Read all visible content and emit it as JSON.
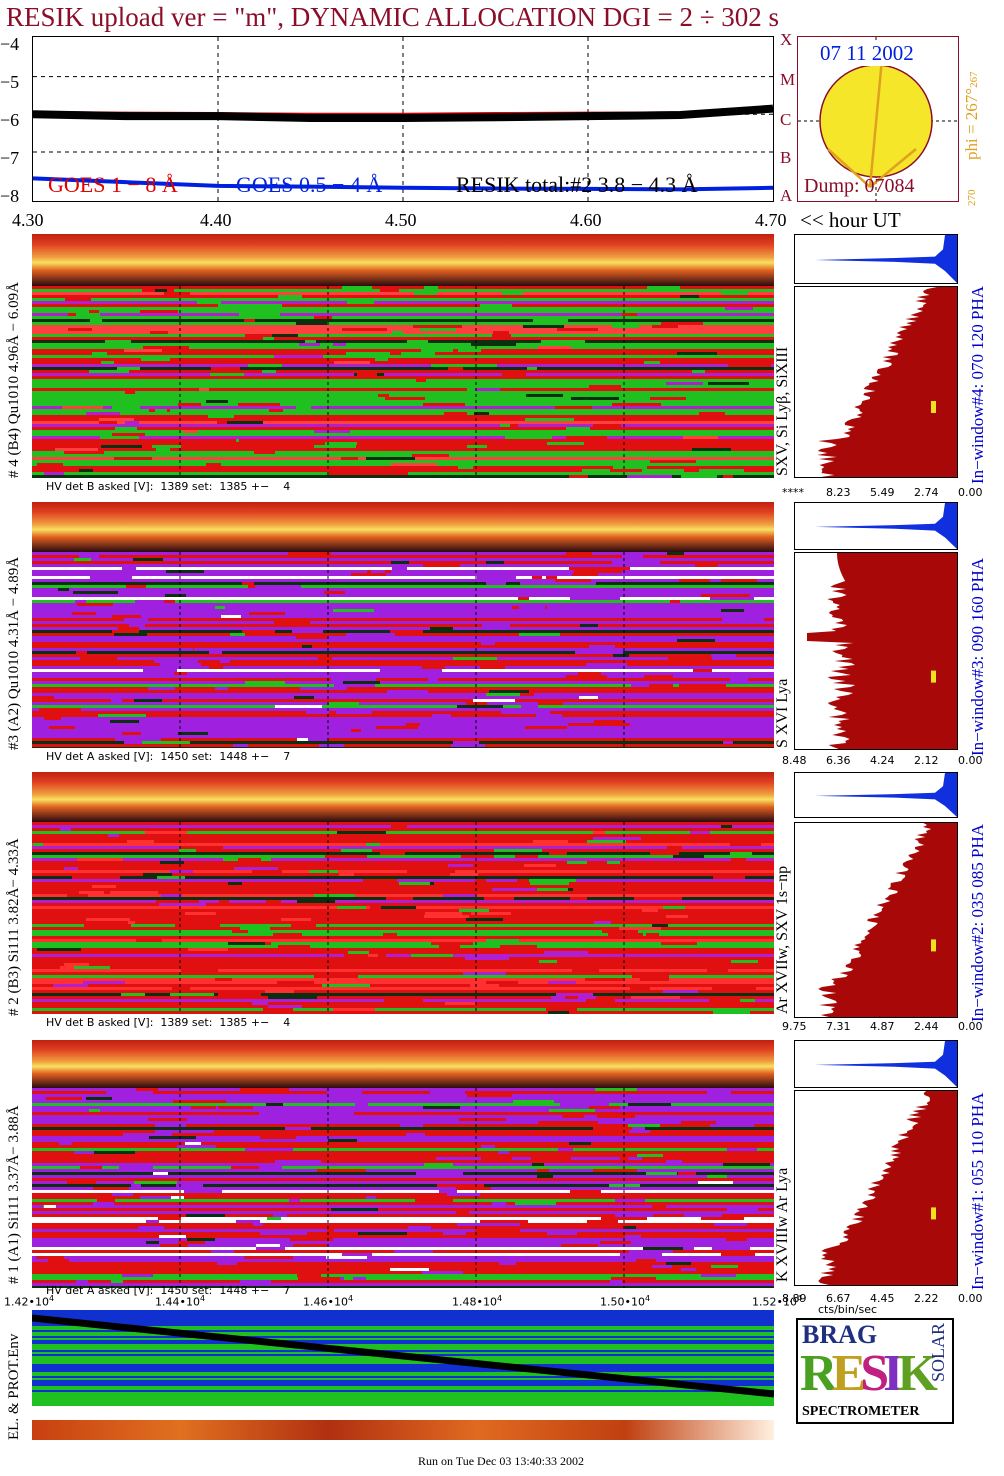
{
  "title": "RESIK upload ver = \"m\", DYNAMIC ALLOCATION  DGI =   2 ÷ 302 s",
  "lightcurve": {
    "y_ticks": [
      "−4",
      "−5",
      "−6",
      "−7",
      "−8"
    ],
    "x_ticks": [
      "4.30",
      "4.40",
      "4.50",
      "4.60",
      "4.70"
    ],
    "x_suffix": "<< hour UT",
    "legend": {
      "goes_long": "GOES 1 − 8 Å",
      "goes_short": "GOES 0.5 − 4 Å",
      "resik": "RESIK total:#2  3.8 − 4.3 Å"
    },
    "class_letters": [
      "X",
      "M",
      "C",
      "B",
      "A"
    ],
    "colors": {
      "goes_long": "#e00000",
      "goes_short": "#0020e0",
      "resik": "#000000"
    }
  },
  "sun": {
    "date": "07 11 2002",
    "dump": "Dump: 07084",
    "phi": "phi = 267°",
    "phi_small": "267",
    "angle_small": "270"
  },
  "channels": [
    {
      "left_label": "# 4 (B4) Qu1010 4.96Å − 6.09Å",
      "lines_label": "SXV, Si Lyβ, SiXIII",
      "window_label": "In−window#4:  070 120 PHA",
      "hv": "HV det B asked [V]:  1389 set:  1385 +−    4",
      "axis_ticks": [
        "****",
        "8.23",
        "5.49",
        "2.74",
        "0.00"
      ],
      "dominant": "green"
    },
    {
      "left_label": "#3 (A2) Qu1010  4.31Å − 4.89Å",
      "lines_label": "S XVI Lya",
      "window_label": "In−window#3:  090 160 PHA",
      "hv": "HV det A asked [V]:  1450 set:  1448 +−    7",
      "axis_ticks": [
        "8.48",
        "6.36",
        "4.24",
        "2.12",
        "0.00"
      ],
      "dominant": "purple"
    },
    {
      "left_label": "# 2 (B3) Si111  3.82Å− 4.33Å",
      "lines_label": "Ar XVIIw,  SXV 1s−np",
      "window_label": "In−window#2:  035 085 PHA",
      "hv": "HV det B asked [V]:  1389 set:  1385 +−    4",
      "axis_ticks": [
        "9.75",
        "7.31",
        "4.87",
        "2.44",
        "0.00"
      ],
      "dominant": "red"
    },
    {
      "left_label": "# 1 (A1) Si111  3.37Å− 3.88Å",
      "lines_label": "K XVIIIw  Ar Lya",
      "window_label": "In−window#1:  055 110 PHA",
      "hv": "HV det A asked [V]:  1450 set:  1448 +−    7",
      "axis_ticks": [
        "8.89",
        "6.67",
        "4.45",
        "2.22",
        "0.00"
      ],
      "dominant": "purple"
    }
  ],
  "cts_label": "cts/bin/sec",
  "env": {
    "label": "EL. & PROT.Env",
    "x_ticks": [
      "1.42•10",
      "1.44•10",
      "1.46•10",
      "1.48•10",
      "1.50•10",
      "1.52•10"
    ],
    "exp": "4"
  },
  "logo": {
    "letters": "RESIK",
    "top": "BRAG",
    "side": "SOLAR",
    "bottom": "SPECTROMETER"
  },
  "footer": "Run on Tue Dec 03 13:40:33 2002",
  "chart_data": {
    "type": "line",
    "title": "RESIK upload ver = \"m\", DYNAMIC ALLOCATION  DGI =   2 ÷ 302 s",
    "xlabel": "<< hour UT",
    "x": [
      4.3,
      4.35,
      4.4,
      4.45,
      4.5,
      4.55,
      4.6,
      4.65,
      4.7
    ],
    "xlim": [
      4.3,
      4.7
    ],
    "ylim": [
      -8.3,
      -3.9
    ],
    "series": [
      {
        "name": "GOES 1 − 8 Å",
        "values": [
          -5.95,
          -5.97,
          -5.98,
          -6.0,
          -6.0,
          -5.98,
          -5.97,
          -5.96,
          -5.85
        ]
      },
      {
        "name": "GOES 0.5 − 4 Å",
        "values": [
          -7.7,
          -7.8,
          -7.9,
          -7.92,
          -7.95,
          -7.97,
          -7.98,
          -7.99,
          -7.95
        ]
      },
      {
        "name": "RESIK total:#2  3.8 − 4.3 Å",
        "values": [
          -6.0,
          -6.05,
          -6.05,
          -6.1,
          -6.1,
          -6.08,
          -6.05,
          -6.02,
          -5.85
        ]
      }
    ]
  }
}
